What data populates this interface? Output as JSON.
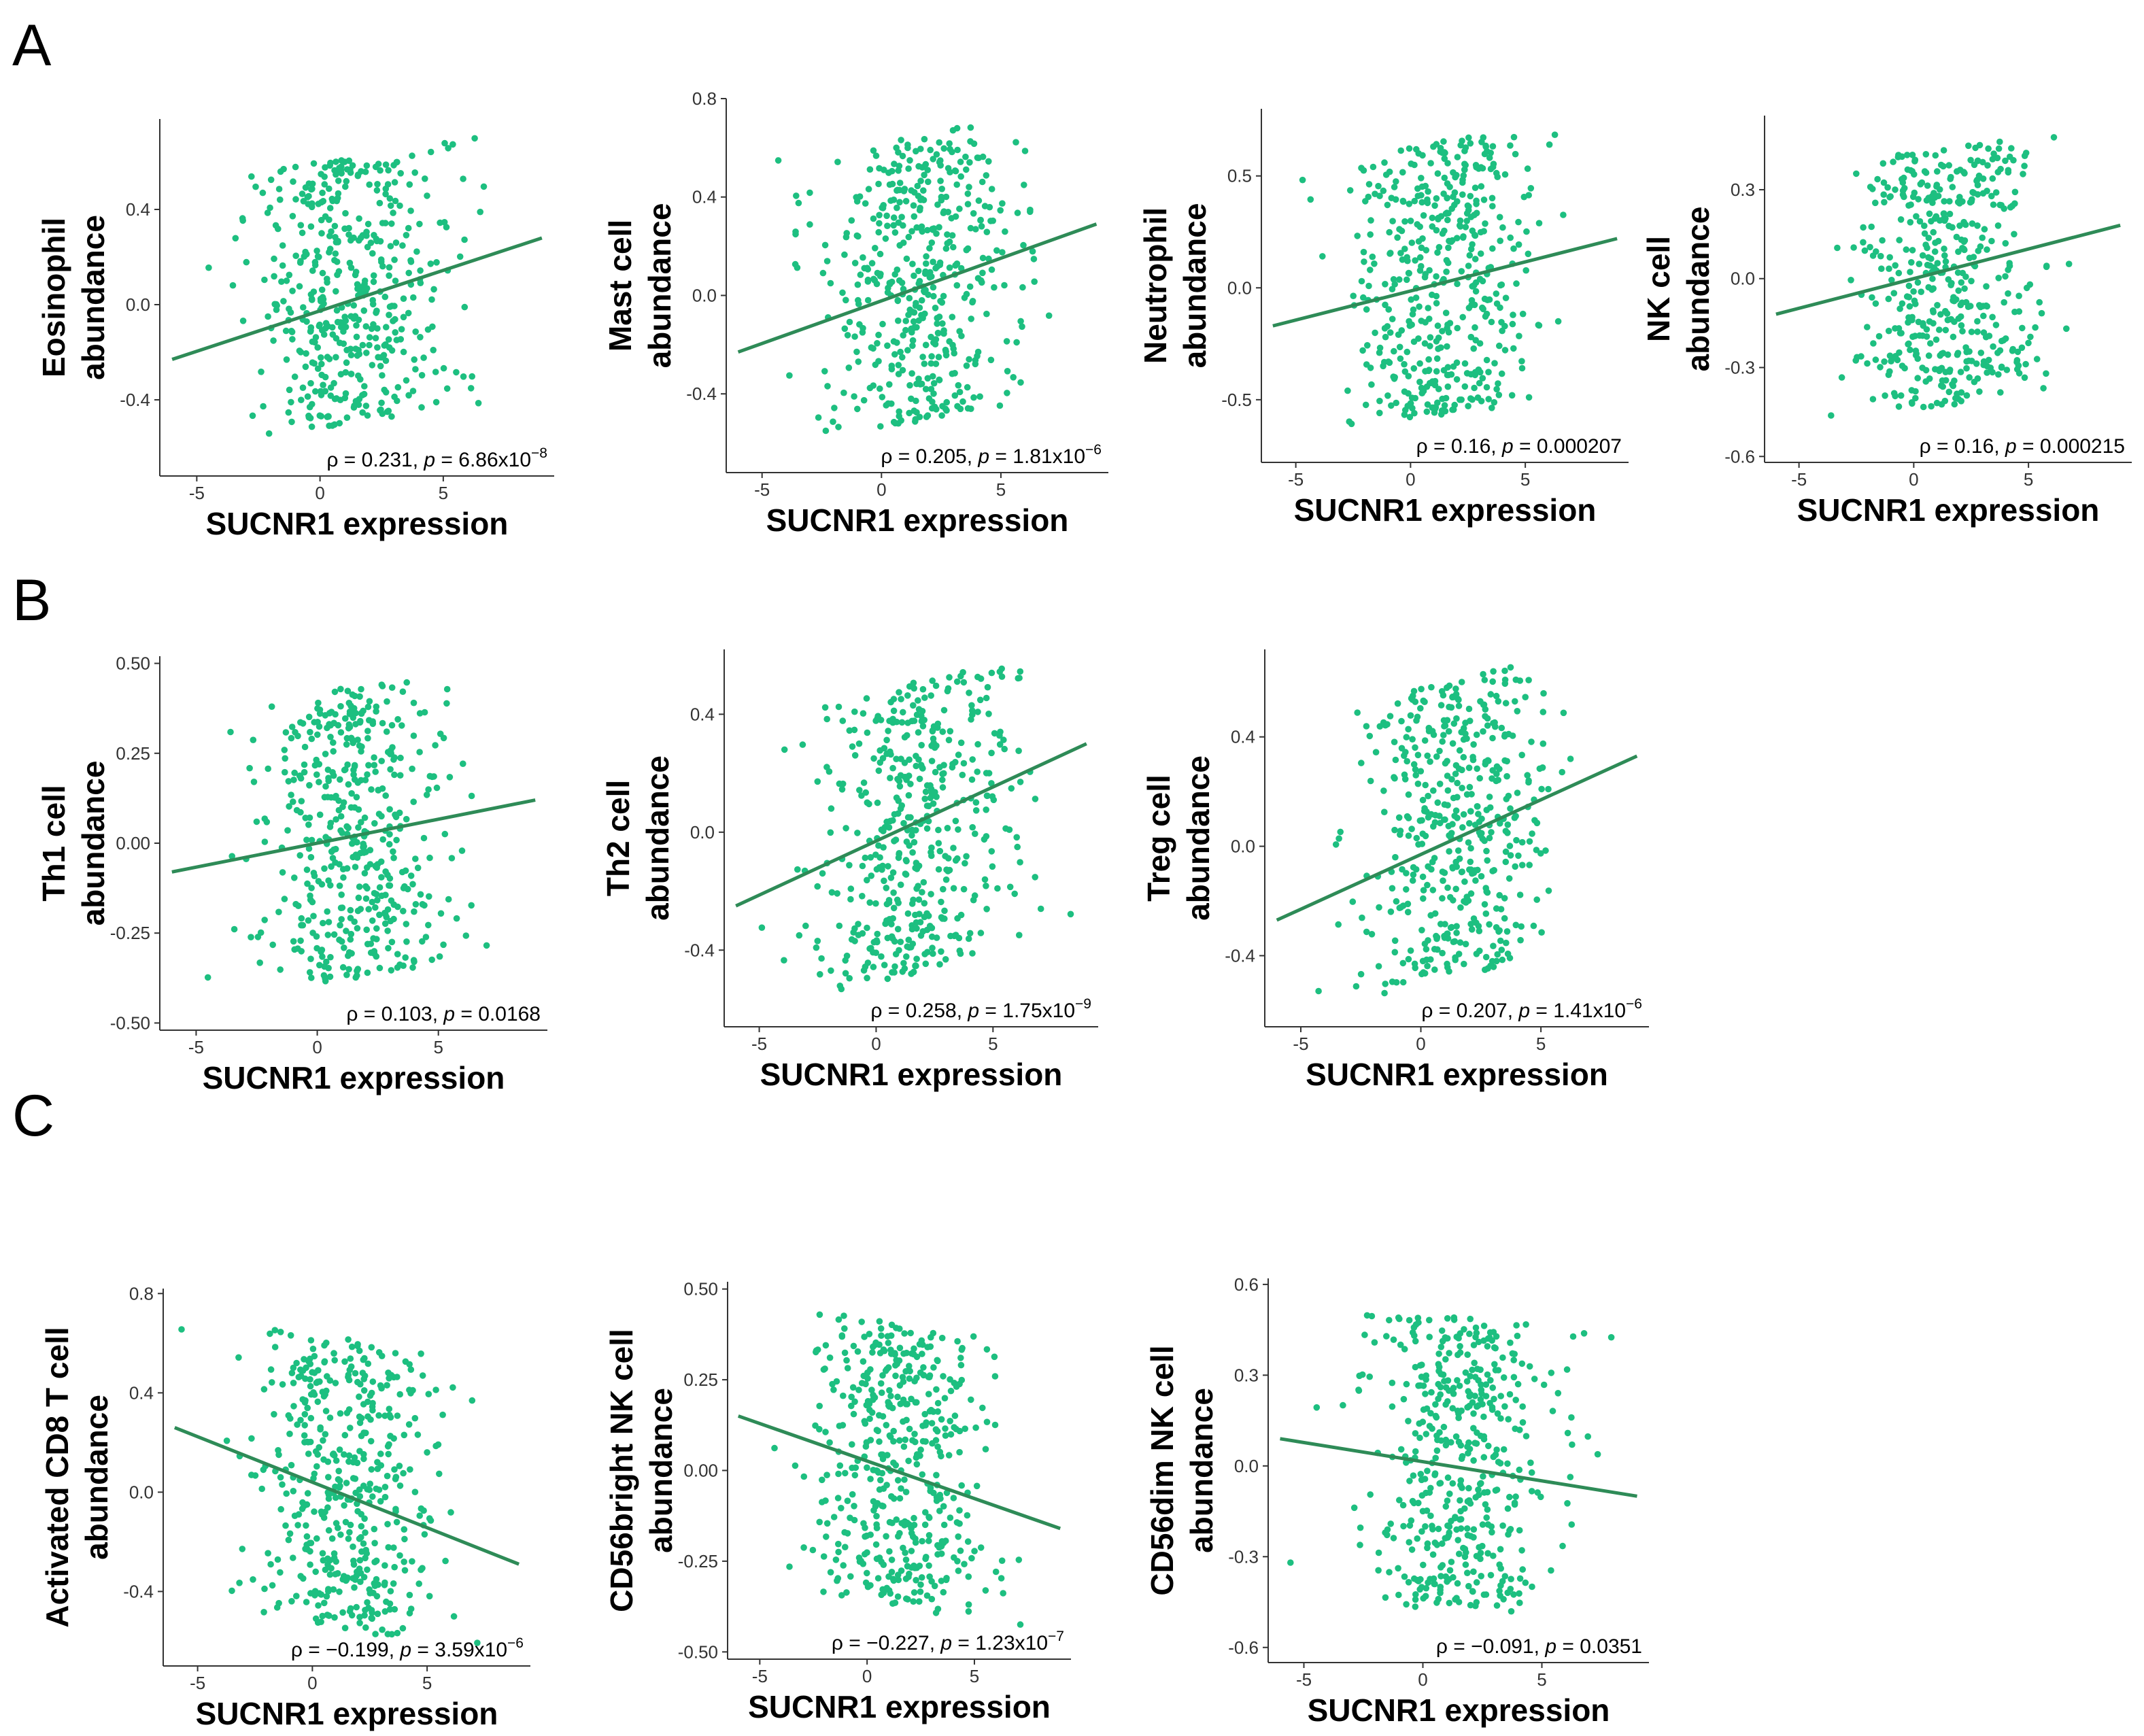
{
  "figure": {
    "panel_letters": [
      "A",
      "B",
      "C"
    ],
    "point_color": "#1dbf80",
    "line_color": "#2e8b57"
  },
  "chart_data": [
    {
      "type": "scatter",
      "group": "A",
      "ylabel": [
        "Eosinophil",
        "abundance"
      ],
      "xlabel": "SUCNR1 expression",
      "xlim": [
        -6.5,
        9.5
      ],
      "ylim": [
        -0.72,
        0.78
      ],
      "xticks": [
        -5,
        0,
        5
      ],
      "xticklabels": [
        "-5",
        "0",
        "5"
      ],
      "yticks": [
        -0.4,
        0.0,
        0.4
      ],
      "yticklabels": [
        "-0.4",
        "0.0",
        "0.4"
      ],
      "rho": "0.231",
      "p_main": "6.86x10",
      "p_exp": "−8",
      "fit": {
        "x1": -6,
        "y1": -0.23,
        "x2": 9,
        "y2": 0.28
      },
      "cloud": {
        "center_x": 1.5,
        "sd_x": 2.0,
        "y_min": -0.6,
        "y_max": 0.72,
        "n": 460,
        "seed": 11
      }
    },
    {
      "type": "scatter",
      "group": "A",
      "ylabel": [
        "Mast cell",
        "abundance"
      ],
      "xlabel": "SUCNR1 expression",
      "xlim": [
        -6.5,
        9.5
      ],
      "ylim": [
        -0.72,
        0.8
      ],
      "xticks": [
        -5,
        0,
        5
      ],
      "xticklabels": [
        "-5",
        "0",
        "5"
      ],
      "yticks": [
        -0.4,
        0.0,
        0.4,
        0.8
      ],
      "yticklabels": [
        "-0.4",
        "0.0",
        "0.4",
        "0.8"
      ],
      "rho": "0.205",
      "p_main": "1.81x10",
      "p_exp": "−6",
      "fit": {
        "x1": -6,
        "y1": -0.23,
        "x2": 9,
        "y2": 0.29
      },
      "cloud": {
        "center_x": 1.5,
        "sd_x": 2.0,
        "y_min": -0.62,
        "y_max": 0.75,
        "n": 460,
        "seed": 23
      }
    },
    {
      "type": "scatter",
      "group": "A",
      "ylabel": [
        "Neutrophil",
        "abundance"
      ],
      "xlabel": "SUCNR1 expression",
      "xlim": [
        -6.5,
        9.5
      ],
      "ylim": [
        -0.78,
        0.8
      ],
      "xticks": [
        -5,
        0,
        5
      ],
      "xticklabels": [
        "-5",
        "0",
        "5"
      ],
      "yticks": [
        -0.5,
        0.0,
        0.5
      ],
      "yticklabels": [
        "-0.5",
        "0.0",
        "0.5"
      ],
      "rho": "0.16",
      "p_main": "0.000207",
      "p_exp": "",
      "fit": {
        "x1": -6,
        "y1": -0.17,
        "x2": 9,
        "y2": 0.22
      },
      "cloud": {
        "center_x": 1.5,
        "sd_x": 2.0,
        "y_min": -0.68,
        "y_max": 0.76,
        "n": 460,
        "seed": 37
      }
    },
    {
      "type": "scatter",
      "group": "A",
      "ylabel": [
        "NK cell",
        "abundance"
      ],
      "xlabel": "SUCNR1 expression",
      "xlim": [
        -6.5,
        9.5
      ],
      "ylim": [
        -0.62,
        0.55
      ],
      "xticks": [
        -5,
        0,
        5
      ],
      "xticklabels": [
        "-5",
        "0",
        "5"
      ],
      "yticks": [
        -0.6,
        -0.3,
        0.0,
        0.3
      ],
      "yticklabels": [
        "-0.6",
        "-0.3",
        "0.0",
        "0.3"
      ],
      "rho": "0.16",
      "p_main": "0.000215",
      "p_exp": "",
      "fit": {
        "x1": -6,
        "y1": -0.12,
        "x2": 9,
        "y2": 0.18
      },
      "cloud": {
        "center_x": 1.5,
        "sd_x": 2.0,
        "y_min": -0.52,
        "y_max": 0.5,
        "n": 460,
        "seed": 41
      }
    },
    {
      "type": "scatter",
      "group": "B",
      "ylabel": [
        "Th1 cell",
        "abundance"
      ],
      "xlabel": "SUCNR1 expression",
      "xlim": [
        -6.5,
        9.5
      ],
      "ylim": [
        -0.52,
        0.52
      ],
      "xticks": [
        -5,
        0,
        5
      ],
      "xticklabels": [
        "-5",
        "0",
        "5"
      ],
      "yticks": [
        -0.5,
        -0.25,
        0.0,
        0.25,
        0.5
      ],
      "yticklabels": [
        "-0.50",
        "-0.25",
        "0.00",
        "0.25",
        "0.50"
      ],
      "rho": "0.103",
      "p_main": "0.0168",
      "p_exp": "",
      "fit": {
        "x1": -6,
        "y1": -0.08,
        "x2": 9,
        "y2": 0.12
      },
      "cloud": {
        "center_x": 1.5,
        "sd_x": 2.0,
        "y_min": -0.46,
        "y_max": 0.5,
        "n": 460,
        "seed": 53
      }
    },
    {
      "type": "scatter",
      "group": "B",
      "ylabel": [
        "Th2 cell",
        "abundance"
      ],
      "xlabel": "SUCNR1 expression",
      "xlim": [
        -6.5,
        9.5
      ],
      "ylim": [
        -0.66,
        0.62
      ],
      "xticks": [
        -5,
        0,
        5
      ],
      "xticklabels": [
        "-5",
        "0",
        "5"
      ],
      "yticks": [
        -0.4,
        0.0,
        0.4
      ],
      "yticklabels": [
        "-0.4",
        "0.0",
        "0.4"
      ],
      "rho": "0.258",
      "p_main": "1.75x10",
      "p_exp": "−9",
      "fit": {
        "x1": -6,
        "y1": -0.25,
        "x2": 9,
        "y2": 0.3
      },
      "cloud": {
        "center_x": 1.5,
        "sd_x": 2.0,
        "y_min": -0.58,
        "y_max": 0.58,
        "n": 460,
        "seed": 67
      }
    },
    {
      "type": "scatter",
      "group": "B",
      "ylabel": [
        "Treg cell",
        "abundance"
      ],
      "xlabel": "SUCNR1 expression",
      "xlim": [
        -6.5,
        9.5
      ],
      "ylim": [
        -0.66,
        0.72
      ],
      "xticks": [
        -5,
        0,
        5
      ],
      "xticklabels": [
        "-5",
        "0",
        "5"
      ],
      "yticks": [
        -0.4,
        0.0,
        0.4
      ],
      "yticklabels": [
        "-0.4",
        "0.0",
        "0.4"
      ],
      "rho": "0.207",
      "p_main": "1.41x10",
      "p_exp": "−6",
      "fit": {
        "x1": -6,
        "y1": -0.27,
        "x2": 9,
        "y2": 0.33
      },
      "cloud": {
        "center_x": 1.5,
        "sd_x": 2.0,
        "y_min": -0.58,
        "y_max": 0.7,
        "n": 460,
        "seed": 79
      }
    },
    {
      "type": "scatter",
      "group": "C",
      "ylabel": [
        "Activated CD8 T cell",
        "abundance"
      ],
      "xlabel": "SUCNR1 expression",
      "xlim": [
        -6.5,
        9.5
      ],
      "ylim": [
        -0.7,
        0.82
      ],
      "xticks": [
        -5,
        0,
        5
      ],
      "xticklabels": [
        "-5",
        "0",
        "5"
      ],
      "yticks": [
        -0.4,
        0.0,
        0.4,
        0.8
      ],
      "yticklabels": [
        "-0.4",
        "0.0",
        "0.4",
        "0.8"
      ],
      "rho": "−0.199",
      "p_main": "3.59x10",
      "p_exp": "−6",
      "fit": {
        "x1": -6,
        "y1": 0.26,
        "x2": 9,
        "y2": -0.29
      },
      "cloud": {
        "center_x": 1.5,
        "sd_x": 2.0,
        "y_min": -0.64,
        "y_max": 0.74,
        "n": 460,
        "seed": 89
      }
    },
    {
      "type": "scatter",
      "group": "C",
      "ylabel": [
        "CD56bright NK cell",
        "abundance"
      ],
      "xlabel": "SUCNR1 expression",
      "xlim": [
        -6.5,
        9.5
      ],
      "ylim": [
        -0.52,
        0.52
      ],
      "xticks": [
        -5,
        0,
        5
      ],
      "xticklabels": [
        "-5",
        "0",
        "5"
      ],
      "yticks": [
        -0.5,
        -0.25,
        0.0,
        0.25,
        0.5
      ],
      "yticklabels": [
        "-0.50",
        "-0.25",
        "0.00",
        "0.25",
        "0.50"
      ],
      "rho": "−0.227",
      "p_main": "1.23x10",
      "p_exp": "−7",
      "fit": {
        "x1": -6,
        "y1": 0.15,
        "x2": 9,
        "y2": -0.16
      },
      "cloud": {
        "center_x": 1.5,
        "sd_x": 2.0,
        "y_min": -0.44,
        "y_max": 0.48,
        "n": 460,
        "seed": 97
      }
    },
    {
      "type": "scatter",
      "group": "C",
      "ylabel": [
        "CD56dim NK cell",
        "abundance"
      ],
      "xlabel": "SUCNR1 expression",
      "xlim": [
        -6.5,
        9.5
      ],
      "ylim": [
        -0.65,
        0.62
      ],
      "xticks": [
        -5,
        0,
        5
      ],
      "xticklabels": [
        "-5",
        "0",
        "5"
      ],
      "yticks": [
        -0.6,
        -0.3,
        0.0,
        0.3,
        0.6
      ],
      "yticklabels": [
        "-0.6",
        "-0.3",
        "0.0",
        "0.3",
        "0.6"
      ],
      "rho": "−0.091",
      "p_main": "0.0351",
      "p_exp": "",
      "fit": {
        "x1": -6,
        "y1": 0.09,
        "x2": 9,
        "y2": -0.1
      },
      "cloud": {
        "center_x": 1.5,
        "sd_x": 2.0,
        "y_min": -0.56,
        "y_max": 0.58,
        "n": 460,
        "seed": 103
      }
    }
  ]
}
